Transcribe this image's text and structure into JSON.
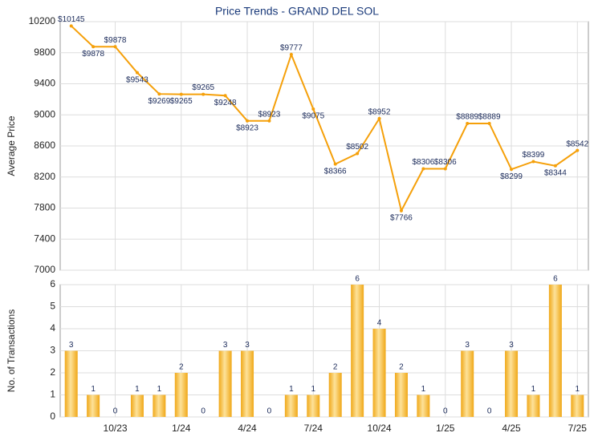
{
  "chart_data": [
    {
      "type": "line",
      "title": "Price Trends - GRAND DEL SOL",
      "ylabel": "Average Price",
      "categories": [
        null,
        null,
        "10/23",
        null,
        null,
        "1/24",
        null,
        null,
        "4/24",
        null,
        null,
        "7/24",
        null,
        null,
        "10/24",
        null,
        null,
        "1/25",
        null,
        null,
        "4/25",
        null,
        null,
        "7/25"
      ],
      "values": [
        10145,
        9878,
        9878,
        9543,
        9269,
        9265,
        9265,
        9248,
        8923,
        8923,
        9777,
        9075,
        8366,
        8502,
        8952,
        7766,
        8306,
        8306,
        8889,
        8889,
        8299,
        8399,
        8344,
        8542
      ],
      "value_labels": [
        "$10145",
        "$9878",
        "$9878",
        "$9543",
        "$9269",
        "$9265",
        "$9265",
        "$9248",
        "$8923",
        "$8923",
        "$9777",
        "$9075",
        "$8366",
        "$8502",
        "$8952",
        "$7766",
        "$8306",
        "$8306",
        "$8889",
        "$8889",
        "$8299",
        "$8399",
        "$8344",
        "$8542"
      ],
      "color": "#f5a00a",
      "ylim": [
        7000,
        10200
      ],
      "yticks": [
        7000,
        7400,
        7800,
        8200,
        8600,
        9000,
        9400,
        9800,
        10200
      ],
      "grid": true
    },
    {
      "type": "bar",
      "ylabel": "No. of Transactions",
      "categories": [
        null,
        null,
        "10/23",
        null,
        null,
        "1/24",
        null,
        null,
        "4/24",
        null,
        null,
        "7/24",
        null,
        null,
        "10/24",
        null,
        null,
        "1/25",
        null,
        null,
        "4/25",
        null,
        null,
        "7/25"
      ],
      "values": [
        3,
        1,
        0,
        1,
        1,
        2,
        0,
        3,
        3,
        0,
        1,
        1,
        2,
        6,
        4,
        2,
        1,
        0,
        3,
        0,
        3,
        1,
        6,
        1
      ],
      "color": "#f0a818",
      "ylim": [
        0,
        6
      ],
      "yticks": [
        0,
        1,
        2,
        3,
        4,
        5,
        6
      ],
      "grid": true
    }
  ]
}
